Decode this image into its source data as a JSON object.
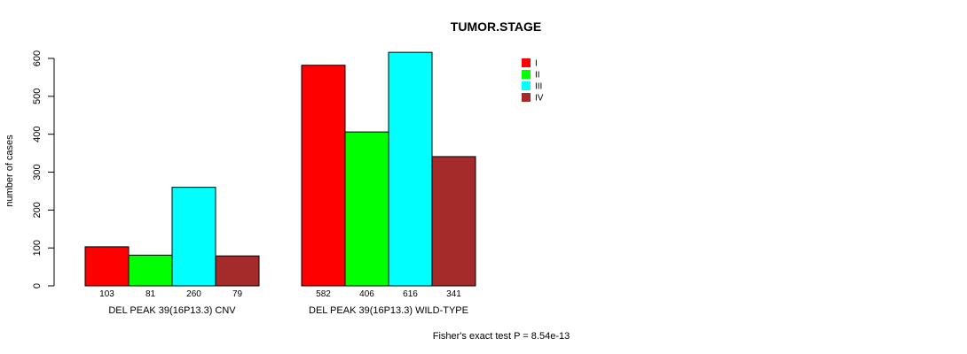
{
  "chart_data": {
    "type": "bar",
    "title": "TUMOR.STAGE",
    "ylabel": "number of cases",
    "xlabel": "",
    "ylim": [
      0,
      620
    ],
    "yticks": [
      0,
      100,
      200,
      300,
      400,
      500,
      600
    ],
    "groups": [
      "DEL PEAK 39(16P13.3) CNV",
      "DEL PEAK 39(16P13.3) WILD-TYPE"
    ],
    "series": [
      {
        "name": "I",
        "color": "#ff0000",
        "values": [
          103,
          582
        ]
      },
      {
        "name": "II",
        "color": "#00ff00",
        "values": [
          81,
          406
        ]
      },
      {
        "name": "III",
        "color": "#00ffff",
        "values": [
          260,
          616
        ]
      },
      {
        "name": "IV",
        "color": "#a52a2a",
        "values": [
          79,
          341
        ]
      }
    ],
    "legend_position": "top-right",
    "footnote": "Fisher's exact test P = 8.54e-13"
  }
}
